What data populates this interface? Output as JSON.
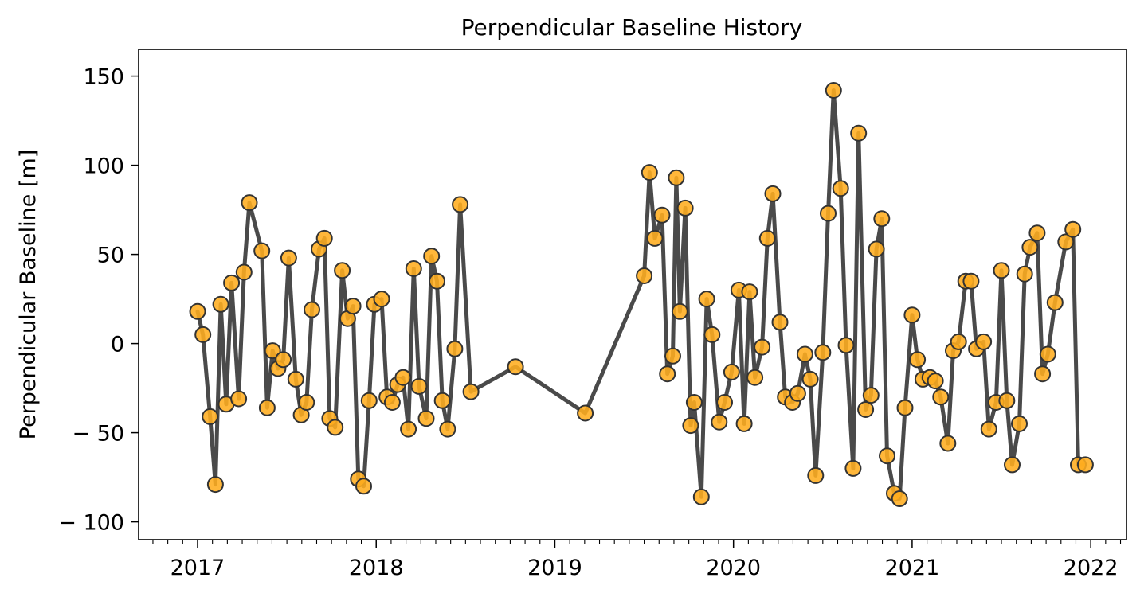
{
  "chart_data": {
    "type": "line",
    "title": "Perpendicular Baseline History",
    "xlabel": "",
    "ylabel": "Perpendicular Baseline [m]",
    "x_ticks": [
      2017,
      2018,
      2019,
      2020,
      2021,
      2022
    ],
    "y_ticks": [
      150,
      100,
      50,
      0,
      -50,
      -100
    ],
    "y_tick_labels": [
      "150",
      "100",
      "50",
      "0",
      "− 50",
      "− 100"
    ],
    "xlim": [
      2016.67,
      2022.2
    ],
    "ylim": [
      -110,
      165
    ],
    "grid": false,
    "line_color": "#4a4a4a",
    "marker_color": "#ffad1f",
    "marker_edge_color": "#333333",
    "series": [
      {
        "x": [
          2017.0,
          2017.03,
          2017.07,
          2017.1,
          2017.13,
          2017.16,
          2017.19,
          2017.23,
          2017.26,
          2017.29,
          2017.36,
          2017.39,
          2017.42,
          2017.45,
          2017.48,
          2017.51,
          2017.55,
          2017.58,
          2017.61,
          2017.64,
          2017.68,
          2017.71,
          2017.74,
          2017.77,
          2017.81,
          2017.84,
          2017.87,
          2017.9,
          2017.93,
          2017.96,
          2017.99,
          2018.03,
          2018.06,
          2018.09,
          2018.12,
          2018.15,
          2018.18,
          2018.21,
          2018.24,
          2018.28,
          2018.31,
          2018.34,
          2018.37,
          2018.4,
          2018.44,
          2018.47,
          2018.53,
          2018.78,
          2019.17,
          2019.5,
          2019.53,
          2019.56,
          2019.6,
          2019.63,
          2019.66,
          2019.68,
          2019.7,
          2019.73,
          2019.76,
          2019.78,
          2019.82,
          2019.85,
          2019.88,
          2019.92,
          2019.95,
          2019.99,
          2020.03,
          2020.06,
          2020.09,
          2020.12,
          2020.16,
          2020.19,
          2020.22,
          2020.26,
          2020.29,
          2020.33,
          2020.36,
          2020.4,
          2020.43,
          2020.46,
          2020.5,
          2020.53,
          2020.56,
          2020.6,
          2020.63,
          2020.67,
          2020.7,
          2020.74,
          2020.77,
          2020.8,
          2020.83,
          2020.86,
          2020.9,
          2020.93,
          2020.96,
          2021.0,
          2021.03,
          2021.06,
          2021.1,
          2021.13,
          2021.16,
          2021.2,
          2021.23,
          2021.26,
          2021.3,
          2021.33,
          2021.36,
          2021.4,
          2021.43,
          2021.47,
          2021.5,
          2021.53,
          2021.56,
          2021.6,
          2021.63,
          2021.66,
          2021.7,
          2021.73,
          2021.76,
          2021.8,
          2021.86,
          2021.9,
          2021.93,
          2021.97
        ],
        "y": [
          18,
          5,
          -41,
          -79,
          22,
          -34,
          34,
          -31,
          40,
          79,
          52,
          -36,
          -4,
          -14,
          -9,
          48,
          -20,
          -40,
          -33,
          19,
          53,
          59,
          -42,
          -47,
          41,
          14,
          21,
          -76,
          -80,
          -32,
          22,
          25,
          -30,
          -33,
          -23,
          -19,
          -48,
          42,
          -24,
          -42,
          49,
          35,
          -32,
          -48,
          -3,
          78,
          -27,
          -13,
          -39,
          38,
          96,
          59,
          72,
          -17,
          -7,
          93,
          18,
          76,
          -46,
          -33,
          -86,
          25,
          5,
          -44,
          -33,
          -16,
          30,
          -45,
          29,
          -19,
          -2,
          59,
          84,
          12,
          -30,
          -33,
          -28,
          -6,
          -20,
          -74,
          -5,
          73,
          142,
          87,
          -1,
          -70,
          118,
          -37,
          -29,
          53,
          70,
          -63,
          -84,
          -87,
          -36,
          16,
          -9,
          -20,
          -19,
          -21,
          -30,
          -56,
          -4,
          1,
          35,
          35,
          -3,
          1,
          -48,
          -33,
          41,
          -32,
          -68,
          -45,
          39,
          54,
          62,
          -17,
          -6,
          23,
          57,
          64,
          -68,
          -68
        ]
      }
    ]
  }
}
